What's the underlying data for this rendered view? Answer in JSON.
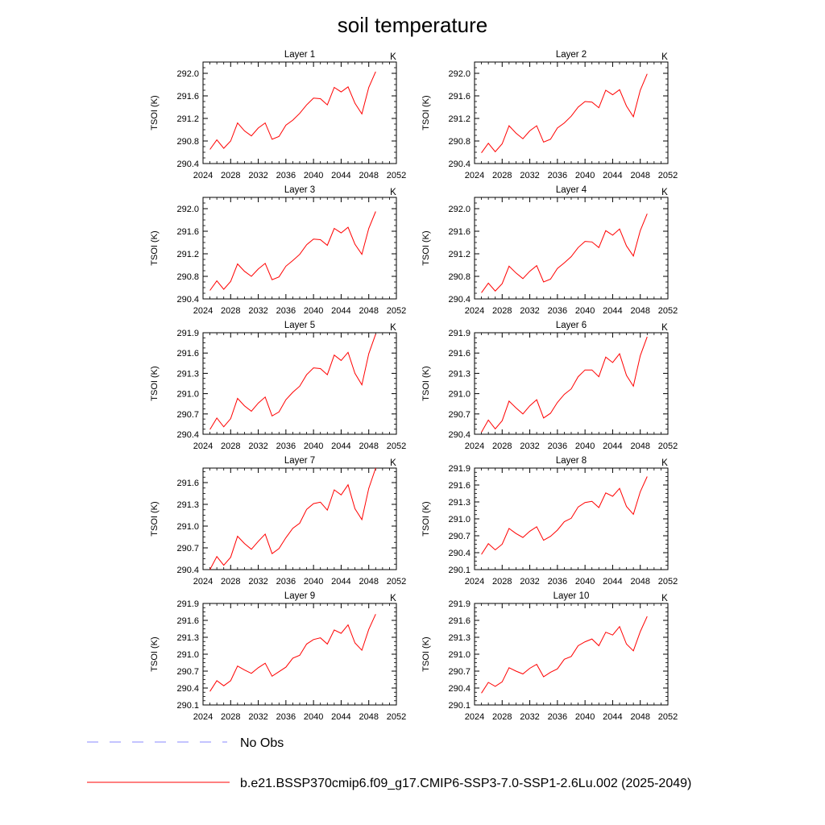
{
  "figure": {
    "title": "soil temperature"
  },
  "legend": [
    {
      "label": "No Obs",
      "color": "#8888ff",
      "dash": true
    },
    {
      "label": "b.e21.BSSP370cmip6.f09_g17.CMIP6-SSP3-7.0-SSP1-2.6Lu.002 (2025-2049)",
      "color": "#ff0000",
      "dash": false
    }
  ],
  "chart_data": [
    {
      "type": "line",
      "title": "Layer 1",
      "unit": "K",
      "ylabel": "TSOI  (K)",
      "xlim": [
        2024,
        2052
      ],
      "xticks": [
        2024,
        2028,
        2032,
        2036,
        2040,
        2044,
        2048,
        2052
      ],
      "ylim": [
        290.4,
        292.2
      ],
      "yticks": [
        "290.4",
        "290.8",
        "291.2",
        "291.6",
        "292.0"
      ],
      "x": [
        2025,
        2026,
        2027,
        2028,
        2029,
        2030,
        2031,
        2032,
        2033,
        2034,
        2035,
        2036,
        2037,
        2038,
        2039,
        2040,
        2041,
        2042,
        2043,
        2044,
        2045,
        2046,
        2047,
        2048,
        2049
      ],
      "series": [
        {
          "values": [
            290.65,
            290.82,
            290.67,
            290.8,
            291.12,
            290.98,
            290.89,
            291.03,
            291.12,
            290.83,
            290.88,
            291.08,
            291.17,
            291.29,
            291.44,
            291.56,
            291.55,
            291.44,
            291.75,
            291.67,
            291.76,
            291.47,
            291.28,
            291.75,
            292.03
          ]
        }
      ]
    },
    {
      "type": "line",
      "title": "Layer 2",
      "unit": "K",
      "ylabel": "TSOI  (K)",
      "xlim": [
        2024,
        2052
      ],
      "xticks": [
        2024,
        2028,
        2032,
        2036,
        2040,
        2044,
        2048,
        2052
      ],
      "ylim": [
        290.4,
        292.2
      ],
      "yticks": [
        "290.4",
        "290.8",
        "291.2",
        "291.6",
        "292.0"
      ],
      "x": [
        2025,
        2026,
        2027,
        2028,
        2029,
        2030,
        2031,
        2032,
        2033,
        2034,
        2035,
        2036,
        2037,
        2038,
        2039,
        2040,
        2041,
        2042,
        2043,
        2044,
        2045,
        2046,
        2047,
        2048,
        2049
      ],
      "series": [
        {
          "values": [
            290.59,
            290.76,
            290.61,
            290.75,
            291.07,
            290.94,
            290.84,
            290.98,
            291.07,
            290.78,
            290.83,
            291.03,
            291.12,
            291.24,
            291.4,
            291.5,
            291.49,
            291.39,
            291.7,
            291.62,
            291.71,
            291.42,
            291.23,
            291.7,
            291.99
          ]
        }
      ]
    },
    {
      "type": "line",
      "title": "Layer 3",
      "unit": "K",
      "ylabel": "TSOI  (K)",
      "xlim": [
        2024,
        2052
      ],
      "xticks": [
        2024,
        2028,
        2032,
        2036,
        2040,
        2044,
        2048,
        2052
      ],
      "ylim": [
        290.4,
        292.2
      ],
      "yticks": [
        "290.4",
        "290.8",
        "291.2",
        "291.6",
        "292.0"
      ],
      "x": [
        2025,
        2026,
        2027,
        2028,
        2029,
        2030,
        2031,
        2032,
        2033,
        2034,
        2035,
        2036,
        2037,
        2038,
        2039,
        2040,
        2041,
        2042,
        2043,
        2044,
        2045,
        2046,
        2047,
        2048,
        2049
      ],
      "series": [
        {
          "values": [
            290.55,
            290.72,
            290.57,
            290.71,
            291.02,
            290.89,
            290.8,
            290.93,
            291.03,
            290.74,
            290.79,
            290.98,
            291.08,
            291.19,
            291.36,
            291.46,
            291.45,
            291.35,
            291.65,
            291.57,
            291.67,
            291.37,
            291.19,
            291.65,
            291.95
          ]
        }
      ]
    },
    {
      "type": "line",
      "title": "Layer 4",
      "unit": "K",
      "ylabel": "TSOI  (K)",
      "xlim": [
        2024,
        2052
      ],
      "xticks": [
        2024,
        2028,
        2032,
        2036,
        2040,
        2044,
        2048,
        2052
      ],
      "ylim": [
        290.4,
        292.2
      ],
      "yticks": [
        "290.4",
        "290.8",
        "291.2",
        "291.6",
        "292.0"
      ],
      "x": [
        2025,
        2026,
        2027,
        2028,
        2029,
        2030,
        2031,
        2032,
        2033,
        2034,
        2035,
        2036,
        2037,
        2038,
        2039,
        2040,
        2041,
        2042,
        2043,
        2044,
        2045,
        2046,
        2047,
        2048,
        2049
      ],
      "series": [
        {
          "values": [
            290.51,
            290.68,
            290.54,
            290.67,
            290.98,
            290.86,
            290.76,
            290.89,
            290.99,
            290.7,
            290.75,
            290.94,
            291.04,
            291.15,
            291.31,
            291.42,
            291.41,
            291.31,
            291.61,
            291.53,
            291.64,
            291.34,
            291.16,
            291.61,
            291.91
          ]
        }
      ]
    },
    {
      "type": "line",
      "title": "Layer 5",
      "unit": "K",
      "ylabel": "TSOI  (K)",
      "xlim": [
        2024,
        2052
      ],
      "xticks": [
        2024,
        2028,
        2032,
        2036,
        2040,
        2044,
        2048,
        2052
      ],
      "ylim": [
        290.4,
        291.9
      ],
      "yticks": [
        "290.4",
        "290.7",
        "291.0",
        "291.3",
        "291.6",
        "291.9"
      ],
      "x": [
        2025,
        2026,
        2027,
        2028,
        2029,
        2030,
        2031,
        2032,
        2033,
        2034,
        2035,
        2036,
        2037,
        2038,
        2039,
        2040,
        2041,
        2042,
        2043,
        2044,
        2045,
        2046,
        2047,
        2048,
        2049
      ],
      "series": [
        {
          "values": [
            290.47,
            290.64,
            290.51,
            290.63,
            290.93,
            290.82,
            290.74,
            290.86,
            290.95,
            290.67,
            290.73,
            290.91,
            291.02,
            291.11,
            291.28,
            291.38,
            291.37,
            291.28,
            291.57,
            291.49,
            291.61,
            291.3,
            291.13,
            291.59,
            291.88
          ]
        }
      ]
    },
    {
      "type": "line",
      "title": "Layer 6",
      "unit": "K",
      "ylabel": "TSOI  (K)",
      "xlim": [
        2024,
        2052
      ],
      "xticks": [
        2024,
        2028,
        2032,
        2036,
        2040,
        2044,
        2048,
        2052
      ],
      "ylim": [
        290.4,
        291.9
      ],
      "yticks": [
        "290.4",
        "290.7",
        "291.0",
        "291.3",
        "291.6",
        "291.9"
      ],
      "x": [
        2025,
        2026,
        2027,
        2028,
        2029,
        2030,
        2031,
        2032,
        2033,
        2034,
        2035,
        2036,
        2037,
        2038,
        2039,
        2040,
        2041,
        2042,
        2043,
        2044,
        2045,
        2046,
        2047,
        2048,
        2049
      ],
      "series": [
        {
          "values": [
            290.43,
            290.61,
            290.48,
            290.6,
            290.89,
            290.79,
            290.7,
            290.82,
            290.91,
            290.64,
            290.71,
            290.87,
            290.99,
            291.07,
            291.25,
            291.35,
            291.35,
            291.25,
            291.54,
            291.46,
            291.59,
            291.27,
            291.11,
            291.56,
            291.84
          ]
        }
      ]
    },
    {
      "type": "line",
      "title": "Layer 7",
      "unit": "K",
      "ylabel": "TSOI  (K)",
      "xlim": [
        2024,
        2052
      ],
      "xticks": [
        2024,
        2028,
        2032,
        2036,
        2040,
        2044,
        2048,
        2052
      ],
      "ylim": [
        290.4,
        291.8
      ],
      "yticks": [
        "290.4",
        "290.7",
        "291.0",
        "291.3",
        "291.6"
      ],
      "x": [
        2025,
        2026,
        2027,
        2028,
        2029,
        2030,
        2031,
        2032,
        2033,
        2034,
        2035,
        2036,
        2037,
        2038,
        2039,
        2040,
        2041,
        2042,
        2043,
        2044,
        2045,
        2046,
        2047,
        2048,
        2049
      ],
      "series": [
        {
          "values": [
            290.4,
            290.58,
            290.46,
            290.57,
            290.86,
            290.76,
            290.68,
            290.79,
            290.89,
            290.62,
            290.69,
            290.84,
            290.97,
            291.04,
            291.23,
            291.31,
            291.33,
            291.22,
            291.5,
            291.43,
            291.57,
            291.24,
            291.09,
            291.52,
            291.8
          ]
        }
      ]
    },
    {
      "type": "line",
      "title": "Layer 8",
      "unit": "K",
      "ylabel": "TSOI  (K)",
      "xlim": [
        2024,
        2052
      ],
      "xticks": [
        2024,
        2028,
        2032,
        2036,
        2040,
        2044,
        2048,
        2052
      ],
      "ylim": [
        290.1,
        291.9
      ],
      "yticks": [
        "290.1",
        "290.4",
        "290.7",
        "291.0",
        "291.3",
        "291.6",
        "291.9"
      ],
      "x": [
        2025,
        2026,
        2027,
        2028,
        2029,
        2030,
        2031,
        2032,
        2033,
        2034,
        2035,
        2036,
        2037,
        2038,
        2039,
        2040,
        2041,
        2042,
        2043,
        2044,
        2045,
        2046,
        2047,
        2048,
        2049
      ],
      "series": [
        {
          "values": [
            290.37,
            290.56,
            290.45,
            290.55,
            290.83,
            290.74,
            290.67,
            290.78,
            290.86,
            290.62,
            290.69,
            290.8,
            290.95,
            291.01,
            291.21,
            291.29,
            291.31,
            291.2,
            291.46,
            291.4,
            291.54,
            291.22,
            291.08,
            291.48,
            291.75
          ]
        }
      ]
    },
    {
      "type": "line",
      "title": "Layer 9",
      "unit": "K",
      "ylabel": "TSOI  (K)",
      "xlim": [
        2024,
        2052
      ],
      "xticks": [
        2024,
        2028,
        2032,
        2036,
        2040,
        2044,
        2048,
        2052
      ],
      "ylim": [
        290.1,
        291.9
      ],
      "yticks": [
        "290.1",
        "290.4",
        "290.7",
        "291.0",
        "291.3",
        "291.6",
        "291.9"
      ],
      "x": [
        2025,
        2026,
        2027,
        2028,
        2029,
        2030,
        2031,
        2032,
        2033,
        2034,
        2035,
        2036,
        2037,
        2038,
        2039,
        2040,
        2041,
        2042,
        2043,
        2044,
        2045,
        2046,
        2047,
        2048,
        2049
      ],
      "series": [
        {
          "values": [
            290.34,
            290.53,
            290.44,
            290.53,
            290.79,
            290.72,
            290.66,
            290.76,
            290.84,
            290.61,
            290.69,
            290.77,
            290.93,
            290.98,
            291.18,
            291.26,
            291.29,
            291.18,
            291.43,
            291.37,
            291.52,
            291.2,
            291.07,
            291.44,
            291.71
          ]
        }
      ]
    },
    {
      "type": "line",
      "title": "Layer 10",
      "unit": "K",
      "ylabel": "TSOI  (K)",
      "xlim": [
        2024,
        2052
      ],
      "xticks": [
        2024,
        2028,
        2032,
        2036,
        2040,
        2044,
        2048,
        2052
      ],
      "ylim": [
        290.1,
        291.9
      ],
      "yticks": [
        "290.1",
        "290.4",
        "290.7",
        "291.0",
        "291.3",
        "291.6",
        "291.9"
      ],
      "x": [
        2025,
        2026,
        2027,
        2028,
        2029,
        2030,
        2031,
        2032,
        2033,
        2034,
        2035,
        2036,
        2037,
        2038,
        2039,
        2040,
        2041,
        2042,
        2043,
        2044,
        2045,
        2046,
        2047,
        2048,
        2049
      ],
      "series": [
        {
          "values": [
            290.31,
            290.5,
            290.43,
            290.51,
            290.76,
            290.7,
            290.65,
            290.75,
            290.82,
            290.6,
            290.68,
            290.74,
            290.91,
            290.96,
            291.15,
            291.22,
            291.27,
            291.15,
            291.39,
            291.34,
            291.49,
            291.18,
            291.06,
            291.4,
            291.67
          ]
        }
      ]
    }
  ]
}
